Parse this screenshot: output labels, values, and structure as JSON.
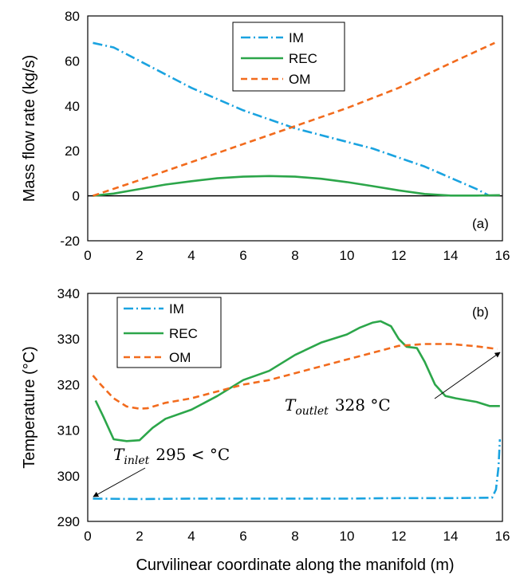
{
  "chart_data": [
    {
      "type": "line",
      "panel_label": "(a)",
      "xlabel": "",
      "ylabel": "Mass flow rate (kg/s)",
      "xlim": [
        0,
        16
      ],
      "ylim": [
        -20,
        80
      ],
      "xticks": [
        "0",
        "2",
        "4",
        "6",
        "8",
        "10",
        "12",
        "14",
        "16"
      ],
      "yticks": [
        "-20",
        "0",
        "20",
        "40",
        "60",
        "80"
      ],
      "xtick_values": [
        0,
        2,
        4,
        6,
        8,
        10,
        12,
        14,
        16
      ],
      "ytick_values": [
        -20,
        0,
        20,
        40,
        60,
        80
      ],
      "zero_line": true,
      "legend_position": "top-center",
      "series": [
        {
          "name": "IM",
          "color": "#1aa3e0",
          "dash": "dashdot",
          "x": [
            0.2,
            1,
            2,
            3,
            4,
            5,
            6,
            7,
            8,
            9,
            10,
            11,
            12,
            13,
            14,
            15,
            15.5
          ],
          "y": [
            68,
            66,
            60,
            54,
            48,
            43,
            38,
            34,
            30,
            27,
            24,
            21,
            17,
            13,
            8,
            3,
            0
          ]
        },
        {
          "name": "REC",
          "color": "#2ca64a",
          "dash": "solid",
          "x": [
            0.2,
            1,
            2,
            3,
            4,
            5,
            6,
            7,
            8,
            9,
            10,
            11,
            12,
            13,
            14,
            15,
            15.9
          ],
          "y": [
            0,
            1,
            3,
            5,
            6.5,
            7.8,
            8.5,
            8.8,
            8.5,
            7.6,
            6.1,
            4.3,
            2.4,
            0.8,
            0.1,
            0.1,
            0.3
          ]
        },
        {
          "name": "OM",
          "color": "#f26b1d",
          "dash": "dashed",
          "x": [
            0.2,
            2,
            4,
            6,
            8,
            10,
            12,
            14,
            15.7
          ],
          "y": [
            0,
            7,
            15,
            23,
            31,
            39,
            48,
            59,
            68
          ]
        }
      ]
    },
    {
      "type": "line",
      "panel_label": "(b)",
      "xlabel": "Curvilinear coordinate along the manifold (m)",
      "ylabel": "Temperature (°C)",
      "xlim": [
        0,
        16
      ],
      "ylim": [
        290,
        340
      ],
      "xticks": [
        "0",
        "2",
        "4",
        "6",
        "8",
        "10",
        "12",
        "14",
        "16"
      ],
      "yticks": [
        "290",
        "300",
        "310",
        "320",
        "330",
        "340"
      ],
      "xtick_values": [
        0,
        2,
        4,
        6,
        8,
        10,
        12,
        14,
        16
      ],
      "ytick_values": [
        290,
        300,
        310,
        320,
        330,
        340
      ],
      "legend_position": "top-left",
      "series": [
        {
          "name": "IM",
          "color": "#1aa3e0",
          "dash": "dashdot",
          "x": [
            0.2,
            2,
            4,
            6,
            8,
            10,
            12,
            14,
            15.6,
            15.75,
            15.85,
            15.9
          ],
          "y": [
            295,
            294.9,
            295,
            295,
            295,
            295,
            295.1,
            295.1,
            295.2,
            297,
            302,
            308
          ]
        },
        {
          "name": "REC",
          "color": "#2ca64a",
          "dash": "solid",
          "x": [
            0.3,
            0.6,
            1,
            1.5,
            2,
            2.5,
            3,
            4,
            5,
            6,
            7,
            8,
            9,
            10,
            10.5,
            11,
            11.3,
            11.7,
            12,
            12.3,
            12.7,
            13,
            13.4,
            13.8,
            14.2,
            15,
            15.5,
            15.9
          ],
          "y": [
            316.5,
            313,
            308,
            307.6,
            307.8,
            310.5,
            312.5,
            314.5,
            317.5,
            321,
            323,
            326.5,
            329.2,
            331,
            332.5,
            333.6,
            333.9,
            332.8,
            330,
            328.3,
            328,
            325,
            320,
            317.5,
            317,
            316.2,
            315.3,
            315.3
          ]
        },
        {
          "name": "OM",
          "color": "#f26b1d",
          "dash": "dashed",
          "x": [
            0.2,
            0.5,
            1,
            1.5,
            2,
            2.3,
            3,
            4,
            5,
            6,
            7,
            8,
            9,
            10,
            11,
            12,
            13,
            14,
            15,
            15.8
          ],
          "y": [
            322,
            320,
            317,
            315.2,
            314.7,
            314.8,
            316,
            317,
            318.5,
            320,
            321,
            322.5,
            324,
            325.5,
            327,
            328.5,
            328.9,
            328.9,
            328.4,
            327.8
          ]
        }
      ],
      "annotations": [
        {
          "label": "T",
          "subscript": "inlet",
          "text": "295 < °C"
        },
        {
          "label": "T",
          "subscript": "outlet",
          "text": "328 °C"
        }
      ]
    }
  ]
}
